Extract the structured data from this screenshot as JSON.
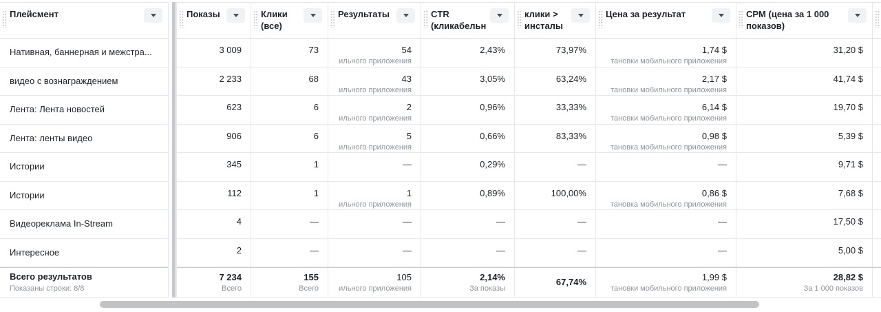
{
  "columns": {
    "placement": "Плейсмент",
    "impressions": "Показы",
    "clicks": "Клики (все)",
    "results": "Результаты",
    "ctr": "CTR (кликабельн",
    "clicks_installs": "клики > инсталы",
    "cost_per_result": "Цена за результат",
    "cpm": "CPM (цена за 1 000 показов)"
  },
  "rows": [
    {
      "placement": "Нативная, баннерная и межстра...",
      "impressions": "3 009",
      "clicks": "73",
      "results": "54",
      "results_sub": "ильного приложения",
      "ctr": "2,43%",
      "clicks_installs": "73,97%",
      "cost": "1,74 $",
      "cost_sub": "тановки мобильного приложения",
      "cpm": "31,20 $"
    },
    {
      "placement": "видео с вознаграждением",
      "impressions": "2 233",
      "clicks": "68",
      "results": "43",
      "results_sub": "ильного приложения",
      "ctr": "3,05%",
      "clicks_installs": "63,24%",
      "cost": "2,17 $",
      "cost_sub": "тановки мобильного приложения",
      "cpm": "41,74 $"
    },
    {
      "placement": "Лента: Лента новостей",
      "impressions": "623",
      "clicks": "6",
      "results": "2",
      "results_sub": "ильного приложения",
      "ctr": "0,96%",
      "clicks_installs": "33,33%",
      "cost": "6,14 $",
      "cost_sub": "тановки мобильного приложения",
      "cpm": "19,70 $"
    },
    {
      "placement": "Лента: ленты видео",
      "impressions": "906",
      "clicks": "6",
      "results": "5",
      "results_sub": "ильного приложения",
      "ctr": "0,66%",
      "clicks_installs": "83,33%",
      "cost": "0,98 $",
      "cost_sub": "тановка мобильного приложения",
      "cpm": "5,39 $"
    },
    {
      "placement": "Истории",
      "impressions": "345",
      "clicks": "1",
      "results": "—",
      "results_sub": "",
      "ctr": "0,29%",
      "clicks_installs": "—",
      "cost": "—",
      "cost_sub": "",
      "cpm": "9,71 $"
    },
    {
      "placement": "Истории",
      "impressions": "112",
      "clicks": "1",
      "results": "1",
      "results_sub": "ильного приложения",
      "ctr": "0,89%",
      "clicks_installs": "100,00%",
      "cost": "0,86 $",
      "cost_sub": "тановка мобильного приложения",
      "cpm": "7,68 $"
    },
    {
      "placement": "Видеореклама In-Stream",
      "impressions": "4",
      "clicks": "—",
      "results": "—",
      "results_sub": "",
      "ctr": "—",
      "clicks_installs": "—",
      "cost": "—",
      "cost_sub": "",
      "cpm": "17,50 $"
    },
    {
      "placement": "Интересное",
      "impressions": "2",
      "clicks": "—",
      "results": "—",
      "results_sub": "",
      "ctr": "—",
      "clicks_installs": "—",
      "cost": "—",
      "cost_sub": "",
      "cpm": "5,00 $"
    }
  ],
  "totals": {
    "label": "Всего результатов",
    "rows_shown": "Показаны строки: 8/8",
    "impressions": "7 234",
    "impressions_sub": "Всего",
    "clicks": "155",
    "clicks_sub": "Всего",
    "results": "105",
    "results_sub": "ильного приложения",
    "ctr": "2,14%",
    "ctr_sub": "За показы",
    "clicks_installs": "67,74%",
    "cost": "1,99 $",
    "cost_sub": "тановки мобильного приложения",
    "cpm": "28,82 $",
    "cpm_sub": "За 1 000 показов"
  }
}
